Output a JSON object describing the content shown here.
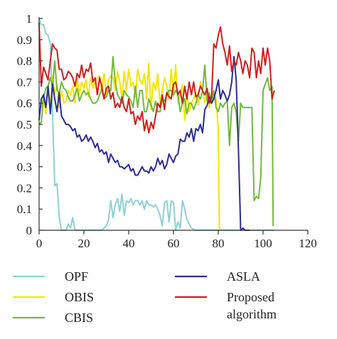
{
  "chart_data": {
    "type": "line",
    "title": "",
    "xlabel": "",
    "ylabel": "",
    "xlim": [
      0,
      120
    ],
    "ylim": [
      0,
      1
    ],
    "x_ticks": [
      0,
      20,
      40,
      60,
      80,
      100,
      120
    ],
    "y_ticks": [
      0,
      0.1,
      0.2,
      0.3,
      0.4,
      0.5,
      0.6,
      0.7,
      0.8,
      0.9,
      1
    ],
    "x_tick_labels": [
      "0",
      "20",
      "40",
      "60",
      "80",
      "100",
      "120"
    ],
    "y_tick_labels": [
      "0",
      "0.1",
      "0.2",
      "0.3",
      "0.4",
      "0.5",
      "0.6",
      "0.7",
      "0.8",
      "0.9",
      "1"
    ],
    "grid": false,
    "legend_position": "bottom",
    "series": [
      {
        "name": "OPF",
        "color": "#8fd0d3",
        "x": [
          0,
          1,
          2,
          3,
          4,
          5,
          6,
          7,
          8,
          9,
          10,
          11,
          12,
          13,
          14,
          15,
          16,
          17,
          18,
          20,
          22,
          24,
          26,
          28,
          29,
          30,
          31,
          32,
          33,
          34,
          35,
          36,
          37,
          38,
          39,
          40,
          41,
          42,
          43,
          44,
          45,
          46,
          47,
          48,
          49,
          50,
          51,
          52,
          53,
          54,
          55,
          56,
          57,
          58,
          59,
          60,
          61,
          62,
          63,
          64,
          65,
          66,
          67,
          68,
          70,
          75,
          80,
          85,
          90,
          95,
          100,
          105
        ],
        "y": [
          1,
          0.97,
          0.97,
          0.93,
          0.92,
          0.88,
          0.55,
          0.21,
          0.22,
          0.06,
          0,
          0,
          0,
          0.03,
          0.01,
          0.06,
          0,
          0,
          0,
          0,
          0,
          0,
          0,
          0,
          0.01,
          0.02,
          0.05,
          0.14,
          0.06,
          0.12,
          0.15,
          0.09,
          0.17,
          0.07,
          0.14,
          0.13,
          0.15,
          0.12,
          0.14,
          0.14,
          0.12,
          0.14,
          0.1,
          0.14,
          0.12,
          0.12,
          0.11,
          0.12,
          0.1,
          0.07,
          0.02,
          0.13,
          0.14,
          0.04,
          0.14,
          0.13,
          0,
          0.04,
          0.01,
          0.14,
          0.1,
          0.05,
          0.03,
          0.01,
          0,
          0,
          0,
          0,
          0,
          0,
          0,
          0
        ]
      },
      {
        "name": "OBIS",
        "color": "#f4e500",
        "x": [
          0,
          1,
          2,
          3,
          4,
          5,
          6,
          7,
          8,
          9,
          10,
          11,
          12,
          13,
          14,
          15,
          16,
          17,
          18,
          19,
          20,
          21,
          22,
          23,
          24,
          25,
          26,
          27,
          28,
          29,
          30,
          31,
          32,
          33,
          34,
          35,
          36,
          37,
          38,
          39,
          40,
          41,
          42,
          43,
          44,
          45,
          46,
          47,
          48,
          49,
          50,
          51,
          52,
          53,
          54,
          55,
          56,
          57,
          58,
          59,
          60,
          61,
          62,
          63,
          64,
          65,
          66,
          67,
          68,
          69,
          70,
          71,
          72,
          73,
          74,
          75,
          76,
          77,
          78,
          79,
          80,
          80.5
        ],
        "y": [
          0.6,
          0.58,
          0.63,
          0.55,
          0.68,
          0.58,
          0.73,
          0.64,
          0.69,
          0.58,
          0.66,
          0.6,
          0.61,
          0.66,
          0.64,
          0.68,
          0.6,
          0.72,
          0.64,
          0.7,
          0.67,
          0.71,
          0.63,
          0.72,
          0.67,
          0.7,
          0.72,
          0.73,
          0.65,
          0.74,
          0.64,
          0.71,
          0.73,
          0.72,
          0.66,
          0.75,
          0.7,
          0.62,
          0.75,
          0.66,
          0.76,
          0.68,
          0.7,
          0.63,
          0.76,
          0.71,
          0.69,
          0.74,
          0.62,
          0.79,
          0.57,
          0.7,
          0.66,
          0.74,
          0.6,
          0.66,
          0.72,
          0.68,
          0.62,
          0.76,
          0.63,
          0.78,
          0.6,
          0.64,
          0.69,
          0.52,
          0.65,
          0.56,
          0.6,
          0.62,
          0.65,
          0.59,
          0.7,
          0.66,
          0.6,
          0.66,
          0.58,
          0.64,
          0.64,
          0.62,
          0.48,
          0
        ]
      },
      {
        "name": "CBIS",
        "color": "#72b840",
        "x": [
          0,
          1,
          2,
          3,
          4,
          5,
          6,
          7,
          8,
          9,
          10,
          11,
          12,
          13,
          14,
          15,
          16,
          17,
          18,
          19,
          20,
          21,
          22,
          23,
          24,
          25,
          26,
          27,
          28,
          29,
          30,
          31,
          32,
          33,
          34,
          35,
          36,
          37,
          38,
          39,
          40,
          41,
          42,
          43,
          44,
          45,
          46,
          47,
          48,
          49,
          50,
          51,
          52,
          53,
          54,
          55,
          56,
          57,
          58,
          59,
          60,
          61,
          62,
          63,
          64,
          65,
          66,
          67,
          68,
          69,
          70,
          71,
          72,
          73,
          74,
          75,
          76,
          77,
          78,
          79,
          80,
          81,
          82,
          83,
          84,
          85,
          86,
          87,
          88,
          89,
          90,
          91,
          92,
          93,
          94,
          95,
          96,
          97,
          98,
          99,
          100,
          101,
          102,
          103,
          104,
          104.5
        ],
        "y": [
          0.5,
          0.51,
          0.63,
          0.67,
          0.68,
          0.72,
          0.68,
          0.8,
          0.66,
          0.65,
          0.7,
          0.67,
          0.66,
          0.63,
          0.61,
          0.61,
          0.64,
          0.67,
          0.61,
          0.64,
          0.66,
          0.64,
          0.65,
          0.62,
          0.6,
          0.6,
          0.61,
          0.64,
          0.67,
          0.62,
          0.63,
          0.66,
          0.66,
          0.82,
          0.7,
          0.64,
          0.62,
          0.6,
          0.66,
          0.64,
          0.63,
          0.61,
          0.58,
          0.68,
          0.58,
          0.66,
          0.66,
          0.56,
          0.56,
          0.62,
          0.59,
          0.56,
          0.61,
          0.56,
          0.56,
          0.62,
          0.61,
          0.64,
          0.66,
          0.66,
          0.64,
          0.66,
          0.64,
          0.56,
          0.6,
          0.62,
          0.55,
          0.6,
          0.6,
          0.57,
          0.6,
          0.64,
          0.62,
          0.66,
          0.78,
          0.61,
          0.65,
          0.6,
          0.66,
          0.58,
          0.56,
          0.6,
          0.58,
          0.6,
          0.61,
          0.4,
          0.58,
          0.6,
          0.56,
          0.42,
          0.6,
          0.58,
          0.58,
          0.58,
          0.58,
          0.58,
          0.14,
          0.16,
          0.15,
          0.25,
          0.66,
          0.69,
          0.72,
          0.66,
          0.68,
          0.02
        ]
      },
      {
        "name": "ASLA",
        "color": "#2a2d92",
        "x": [
          0,
          1,
          2,
          3,
          4,
          5,
          6,
          7,
          8,
          9,
          10,
          11,
          12,
          13,
          14,
          15,
          16,
          17,
          18,
          19,
          20,
          21,
          22,
          23,
          24,
          25,
          26,
          27,
          28,
          29,
          30,
          31,
          32,
          33,
          34,
          35,
          36,
          37,
          38,
          39,
          40,
          41,
          42,
          43,
          44,
          45,
          46,
          47,
          48,
          49,
          50,
          51,
          52,
          53,
          54,
          55,
          56,
          57,
          58,
          59,
          60,
          61,
          62,
          63,
          64,
          65,
          66,
          67,
          68,
          69,
          70,
          71,
          72,
          73,
          74,
          75,
          76,
          77,
          78,
          79,
          80,
          81,
          82,
          83,
          84,
          85,
          86,
          87,
          88,
          89,
          90,
          91,
          92,
          93,
          94
        ],
        "y": [
          0.52,
          0.62,
          0.64,
          0.58,
          0.68,
          0.55,
          0.69,
          0.62,
          0.56,
          0.65,
          0.54,
          0.52,
          0.5,
          0.5,
          0.49,
          0.47,
          0.48,
          0.44,
          0.45,
          0.42,
          0.43,
          0.45,
          0.42,
          0.44,
          0.42,
          0.39,
          0.41,
          0.37,
          0.38,
          0.36,
          0.37,
          0.32,
          0.36,
          0.34,
          0.32,
          0.33,
          0.3,
          0.3,
          0.29,
          0.3,
          0.31,
          0.28,
          0.29,
          0.26,
          0.26,
          0.28,
          0.3,
          0.28,
          0.28,
          0.27,
          0.3,
          0.28,
          0.3,
          0.34,
          0.31,
          0.33,
          0.29,
          0.31,
          0.36,
          0.34,
          0.32,
          0.35,
          0.36,
          0.43,
          0.42,
          0.42,
          0.46,
          0.44,
          0.48,
          0.42,
          0.48,
          0.47,
          0.5,
          0.46,
          0.57,
          0.59,
          0.63,
          0.6,
          0.62,
          0.66,
          0.71,
          0.62,
          0.66,
          0.64,
          0.61,
          0.64,
          0.7,
          0.82,
          0.71,
          0.38,
          0,
          0.01,
          0,
          0,
          0
        ]
      },
      {
        "name": "Proposed algorithm",
        "color": "#cc1f1f",
        "x": [
          0,
          1,
          2,
          3,
          4,
          5,
          6,
          7,
          8,
          9,
          10,
          11,
          12,
          13,
          14,
          15,
          16,
          17,
          18,
          19,
          20,
          21,
          22,
          23,
          24,
          25,
          26,
          27,
          28,
          29,
          30,
          31,
          32,
          33,
          34,
          35,
          36,
          37,
          38,
          39,
          40,
          41,
          42,
          43,
          44,
          45,
          46,
          47,
          48,
          49,
          50,
          51,
          52,
          53,
          54,
          55,
          56,
          57,
          58,
          59,
          60,
          61,
          62,
          63,
          64,
          65,
          66,
          67,
          68,
          69,
          70,
          71,
          72,
          73,
          74,
          75,
          76,
          77,
          78,
          79,
          80,
          81,
          82,
          83,
          84,
          85,
          86,
          87,
          88,
          89,
          90,
          91,
          92,
          93,
          94,
          95,
          96,
          97,
          98,
          99,
          100,
          101,
          102,
          103,
          104,
          105
        ],
        "y": [
          0.98,
          0.68,
          0.77,
          0.74,
          0.71,
          0.8,
          0.88,
          0.86,
          0.85,
          0.76,
          0.76,
          0.71,
          0.72,
          0.75,
          0.74,
          0.72,
          0.68,
          0.74,
          0.72,
          0.78,
          0.72,
          0.76,
          0.75,
          0.79,
          0.7,
          0.72,
          0.64,
          0.72,
          0.68,
          0.62,
          0.67,
          0.68,
          0.62,
          0.65,
          0.58,
          0.6,
          0.58,
          0.63,
          0.58,
          0.56,
          0.62,
          0.55,
          0.56,
          0.5,
          0.54,
          0.52,
          0.56,
          0.47,
          0.52,
          0.46,
          0.51,
          0.48,
          0.54,
          0.6,
          0.58,
          0.64,
          0.57,
          0.65,
          0.63,
          0.62,
          0.69,
          0.7,
          0.64,
          0.66,
          0.6,
          0.68,
          0.62,
          0.7,
          0.64,
          0.7,
          0.63,
          0.64,
          0.68,
          0.66,
          0.64,
          0.67,
          0.6,
          0.63,
          0.88,
          0.86,
          0.92,
          0.96,
          0.88,
          0.84,
          0.78,
          0.87,
          0.75,
          0.8,
          0.78,
          0.84,
          0.8,
          0.74,
          0.8,
          0.78,
          0.72,
          0.86,
          0.84,
          0.72,
          0.8,
          0.74,
          0.86,
          0.78,
          0.86,
          0.8,
          0.62,
          0.66
        ]
      }
    ]
  }
}
